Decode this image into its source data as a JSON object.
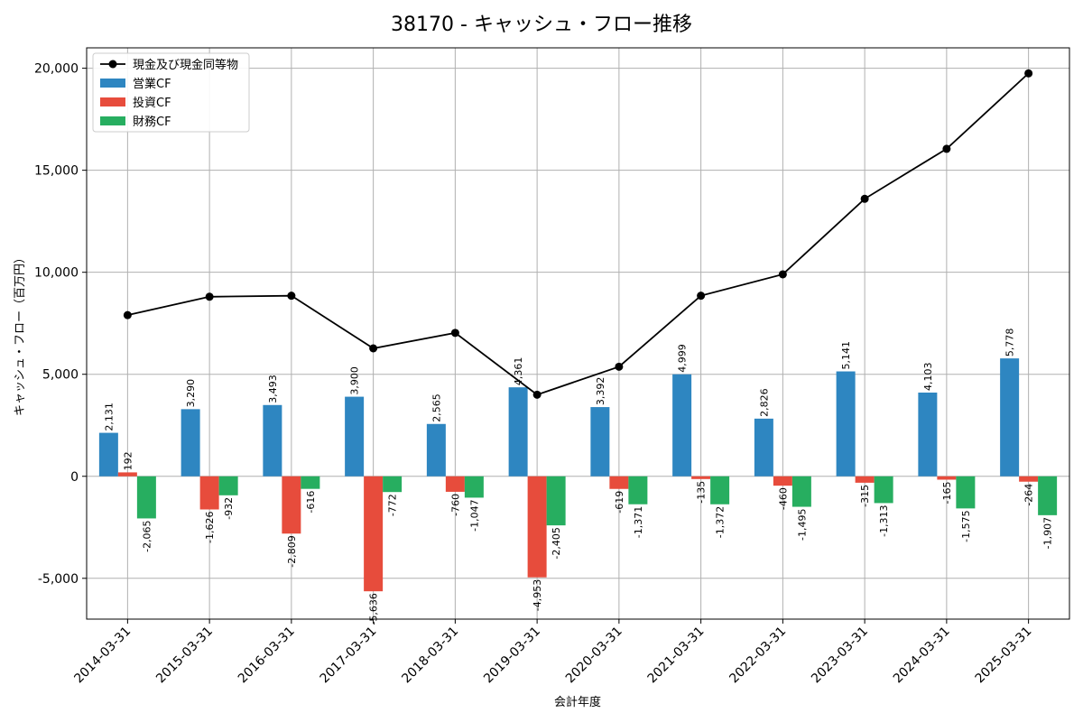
{
  "chart_data": {
    "type": "bar",
    "title": "38170 - キャッシュ・フロー推移",
    "xlabel": "会計年度",
    "ylabel": "キャッシュ・フロー（百万円）",
    "ylim": [
      -7000,
      21000
    ],
    "yticks": [
      -5000,
      0,
      5000,
      10000,
      15000,
      20000
    ],
    "ytick_labels": [
      "-5,000",
      "0",
      "5,000",
      "10,000",
      "15,000",
      "20,000"
    ],
    "grid": true,
    "legend_position": "top-left",
    "categories": [
      "2014-03-31",
      "2015-03-31",
      "2016-03-31",
      "2017-03-31",
      "2018-03-31",
      "2019-03-31",
      "2020-03-31",
      "2021-03-31",
      "2022-03-31",
      "2023-03-31",
      "2024-03-31",
      "2025-03-31"
    ],
    "series": [
      {
        "name": "営業CF",
        "kind": "bar",
        "color": "#2e86c1",
        "values": [
          2131,
          3290,
          3493,
          3900,
          2565,
          4361,
          3392,
          4999,
          2826,
          5141,
          4103,
          5778
        ],
        "labels": [
          "2,131",
          "3,290",
          "3,493",
          "3,900",
          "2,565",
          "4,361",
          "3,392",
          "4,999",
          "2,826",
          "5,141",
          "4,103",
          "5,778"
        ]
      },
      {
        "name": "投資CF",
        "kind": "bar",
        "color": "#e74c3c",
        "values": [
          192,
          -1626,
          -2809,
          -5636,
          -760,
          -4953,
          -619,
          -135,
          -460,
          -315,
          -165,
          -264
        ],
        "labels": [
          "192",
          "-1,626",
          "-2,809",
          "-5,636",
          "-760",
          "-4,953",
          "-619",
          "-135",
          "-460",
          "-315",
          "-165",
          "-264"
        ]
      },
      {
        "name": "財務CF",
        "kind": "bar",
        "color": "#27ae60",
        "values": [
          -2065,
          -932,
          -616,
          -772,
          -1047,
          -2405,
          -1371,
          -1372,
          -1495,
          -1313,
          -1575,
          -1907
        ],
        "labels": [
          "-2,065",
          "-932",
          "-616",
          "-772",
          "-1,047",
          "-2,405",
          "-1,371",
          "-1,372",
          "-1,495",
          "-1,313",
          "-1,575",
          "-1,907"
        ]
      },
      {
        "name": "現金及び現金同等物",
        "kind": "line",
        "color": "#000000",
        "values": [
          7900,
          8800,
          8850,
          6270,
          7030,
          4000,
          5370,
          8850,
          9900,
          13600,
          16050,
          19750
        ]
      }
    ]
  }
}
